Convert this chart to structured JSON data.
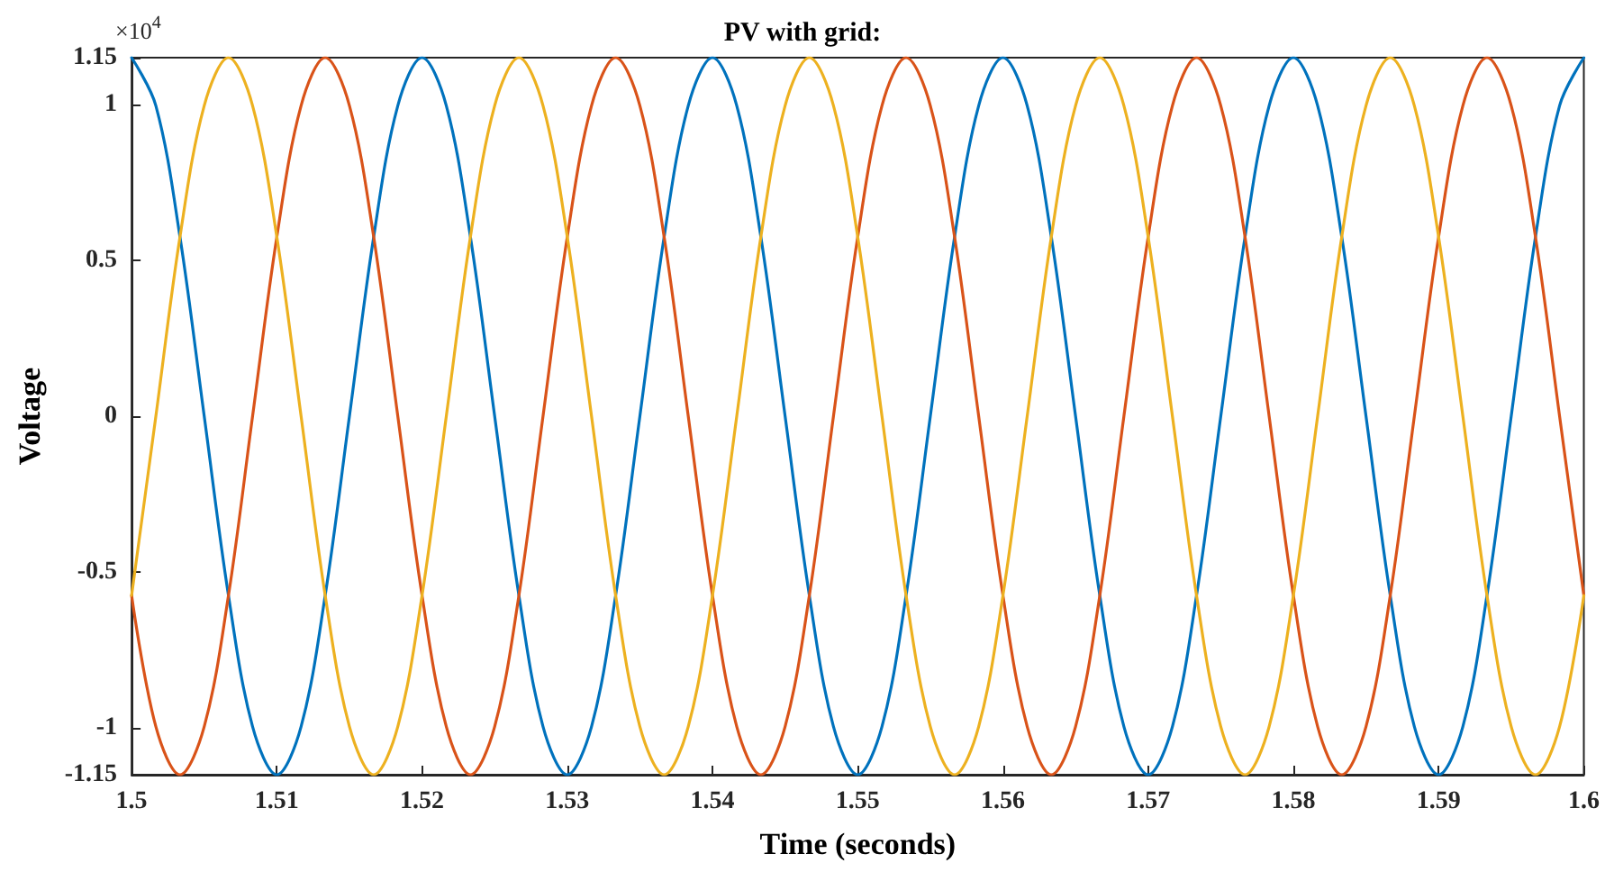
{
  "chart_data": {
    "type": "line",
    "title": "PV with grid:",
    "xlabel": "Time (seconds)",
    "ylabel": "Voltage",
    "annotations": [
      "×10$^{4}$"
    ],
    "x": [
      1.5,
      1.50167,
      1.50333,
      1.505,
      1.50667,
      1.50833,
      1.51,
      1.51167,
      1.51333,
      1.515,
      1.51667,
      1.51833,
      1.52,
      1.52167,
      1.52333,
      1.525,
      1.52667,
      1.52833,
      1.53,
      1.53167,
      1.53333,
      1.535,
      1.53667,
      1.53833,
      1.54,
      1.54167,
      1.54333,
      1.545,
      1.54667,
      1.54833,
      1.55,
      1.55167,
      1.55333,
      1.555,
      1.55667,
      1.55833,
      1.56,
      1.56167,
      1.56333,
      1.565,
      1.56667,
      1.56833,
      1.57,
      1.57167,
      1.57333,
      1.575,
      1.57667,
      1.57833,
      1.58,
      1.58167,
      1.58333,
      1.585,
      1.58667,
      1.58833,
      1.59,
      1.59167,
      1.59333,
      1.595,
      1.59667,
      1.59833,
      1.6
    ],
    "series": [
      {
        "color": "#0072bd",
        "values": [
          1.15,
          0.996,
          0.575,
          0,
          -0.575,
          -0.996,
          -1.15,
          -0.996,
          -0.575,
          0,
          0.575,
          0.996,
          1.15,
          0.996,
          0.575,
          0,
          -0.575,
          -0.996,
          -1.15,
          -0.996,
          -0.575,
          0,
          0.575,
          0.996,
          1.15,
          0.996,
          0.575,
          0,
          -0.575,
          -0.996,
          -1.15,
          -0.996,
          -0.575,
          0,
          0.575,
          0.996,
          1.15,
          0.996,
          0.575,
          0,
          -0.575,
          -0.996,
          -1.15,
          -0.996,
          -0.575,
          0,
          0.575,
          0.996,
          1.15,
          0.996,
          0.575,
          0,
          -0.575,
          -0.996,
          -1.15,
          -0.996,
          -0.575,
          0,
          0.575,
          0.996,
          1.15
        ]
      },
      {
        "color": "#d95319",
        "values": [
          -0.575,
          -0.996,
          -1.15,
          -0.996,
          -0.575,
          0,
          0.575,
          0.996,
          1.15,
          0.996,
          0.575,
          0,
          -0.575,
          -0.996,
          -1.15,
          -0.996,
          -0.575,
          0,
          0.575,
          0.996,
          1.15,
          0.996,
          0.575,
          0,
          -0.575,
          -0.996,
          -1.15,
          -0.996,
          -0.575,
          0,
          0.575,
          0.996,
          1.15,
          0.996,
          0.575,
          0,
          -0.575,
          -0.996,
          -1.15,
          -0.996,
          -0.575,
          0,
          0.575,
          0.996,
          1.15,
          0.996,
          0.575,
          0,
          -0.575,
          -0.996,
          -1.15,
          -0.996,
          -0.575,
          0,
          0.575,
          0.996,
          1.15,
          0.996,
          0.575,
          0,
          -0.575
        ]
      },
      {
        "color": "#edb120",
        "values": [
          -0.575,
          0,
          0.575,
          0.996,
          1.15,
          0.996,
          0.575,
          0,
          -0.575,
          -0.996,
          -1.15,
          -0.996,
          -0.575,
          0,
          0.575,
          0.996,
          1.15,
          0.996,
          0.575,
          0,
          -0.575,
          -0.996,
          -1.15,
          -0.996,
          -0.575,
          0,
          0.575,
          0.996,
          1.15,
          0.996,
          0.575,
          0,
          -0.575,
          -0.996,
          -1.15,
          -0.996,
          -0.575,
          0,
          0.575,
          0.996,
          1.15,
          0.996,
          0.575,
          0,
          -0.575,
          -0.996,
          -1.15,
          -0.996,
          -0.575,
          0,
          0.575,
          0.996,
          1.15,
          0.996,
          0.575,
          0,
          -0.575,
          -0.996,
          -1.15,
          -0.996,
          -0.575
        ]
      }
    ],
    "xlim": [
      1.5,
      1.6
    ],
    "xticks": [
      1.5,
      1.51,
      1.52,
      1.53,
      1.54,
      1.55,
      1.56,
      1.57,
      1.58,
      1.59,
      1.6
    ],
    "ylim": [
      -1.15,
      1.15
    ],
    "yticks": [
      -1.15,
      -1,
      -0.5,
      0,
      0.5,
      1,
      1.15
    ],
    "grid": false,
    "marker": "none",
    "line_style": "solid"
  }
}
